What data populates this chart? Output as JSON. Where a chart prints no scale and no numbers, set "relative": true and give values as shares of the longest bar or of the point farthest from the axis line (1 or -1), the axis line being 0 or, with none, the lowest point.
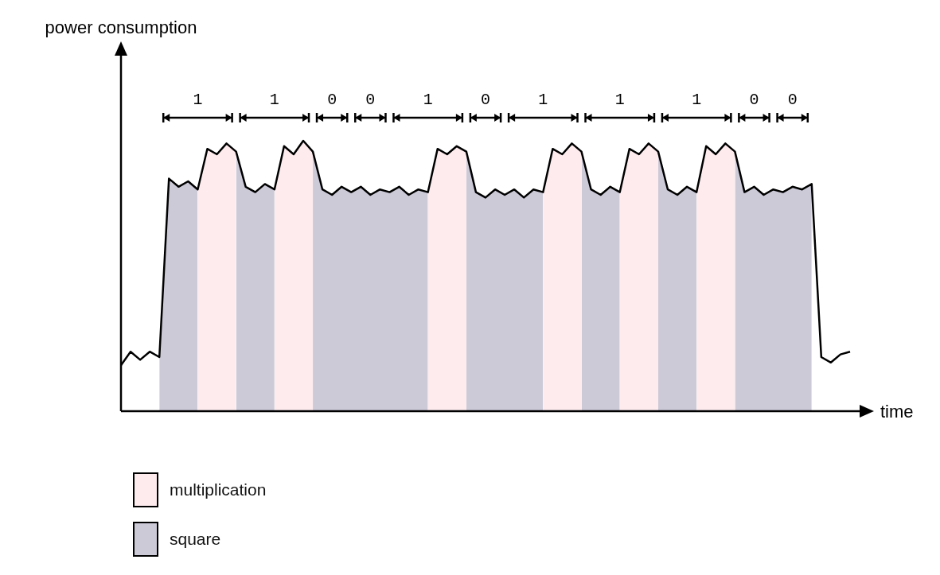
{
  "chart_data": {
    "type": "line",
    "relative": true,
    "xlabel": "time",
    "legend": "bottom left",
    "annotations": [
      "1",
      "1",
      "0",
      "0",
      "1",
      "0",
      "1",
      "1",
      "1",
      "0",
      "0",
      "power consumption"
    ],
    "categories": [
      null,
      null,
      null,
      null,
      null,
      null,
      null,
      null,
      null,
      null,
      null,
      null,
      null,
      null,
      null,
      null,
      null,
      null,
      null,
      null,
      null,
      null,
      null,
      null,
      null,
      null,
      null,
      null,
      null,
      null,
      null,
      null,
      null,
      null,
      null,
      null,
      null,
      null,
      null,
      null,
      null,
      null,
      null,
      null,
      null,
      null,
      null,
      null,
      null,
      null,
      null,
      null,
      null,
      null,
      null,
      null,
      null,
      null,
      null,
      null,
      null,
      null,
      null,
      null,
      null,
      null,
      null,
      null,
      null,
      null,
      null,
      null,
      null,
      null,
      null,
      null,
      null
    ],
    "series": [
      {
        "type": "line",
        "color": "#000000",
        "values": [
          0.17,
          0.22,
          0.19,
          0.22,
          0.2,
          0.86,
          0.83,
          0.85,
          0.82,
          0.97,
          0.95,
          0.99,
          0.96,
          0.83,
          0.81,
          0.84,
          0.82,
          0.98,
          0.95,
          1.0,
          0.96,
          0.82,
          0.8,
          0.83,
          0.81,
          0.83,
          0.8,
          0.82,
          0.81,
          0.83,
          0.8,
          0.82,
          0.81,
          0.97,
          0.95,
          0.98,
          0.96,
          0.81,
          0.79,
          0.82,
          0.8,
          0.82,
          0.79,
          0.82,
          0.81,
          0.97,
          0.95,
          0.99,
          0.96,
          0.82,
          0.8,
          0.83,
          0.81,
          0.97,
          0.95,
          0.99,
          0.96,
          0.82,
          0.8,
          0.83,
          0.81,
          0.98,
          0.95,
          0.99,
          0.96,
          0.81,
          0.83,
          0.8,
          0.82,
          0.81,
          0.83,
          0.82,
          0.84,
          0.2,
          0.18,
          0.21,
          0.22
        ]
      },
      {
        "type": "area",
        "name": "multiplication",
        "color": "#fdebee",
        "values": [
          null,
          null,
          null,
          null,
          null,
          null,
          null,
          null,
          0.82,
          0.97,
          0.95,
          0.99,
          0.96,
          null,
          null,
          null,
          0.82,
          0.98,
          0.95,
          1.0,
          0.96,
          null,
          null,
          null,
          null,
          null,
          null,
          null,
          null,
          null,
          null,
          null,
          0.81,
          0.97,
          0.95,
          0.98,
          0.96,
          null,
          null,
          null,
          null,
          null,
          null,
          null,
          0.81,
          0.97,
          0.95,
          0.99,
          0.96,
          null,
          null,
          null,
          0.81,
          0.97,
          0.95,
          0.99,
          0.96,
          null,
          null,
          null,
          0.81,
          0.98,
          0.95,
          0.99,
          0.96,
          null,
          null,
          null,
          null,
          null,
          null,
          null,
          null,
          null,
          null,
          null,
          null
        ]
      },
      {
        "type": "area",
        "name": "square",
        "color": "#cdcad8",
        "values": [
          null,
          null,
          null,
          null,
          0.2,
          0.86,
          0.83,
          0.85,
          0.82,
          null,
          null,
          null,
          0.96,
          0.83,
          0.81,
          0.84,
          0.82,
          null,
          null,
          null,
          0.96,
          0.82,
          0.8,
          0.83,
          0.81,
          0.83,
          0.8,
          0.82,
          0.81,
          0.83,
          0.8,
          0.82,
          0.81,
          null,
          null,
          null,
          0.96,
          0.81,
          0.79,
          0.82,
          0.8,
          0.82,
          0.79,
          0.82,
          0.81,
          null,
          null,
          null,
          0.96,
          0.82,
          0.8,
          0.83,
          0.81,
          null,
          null,
          null,
          0.96,
          0.82,
          0.8,
          0.83,
          0.81,
          null,
          null,
          null,
          0.96,
          0.81,
          0.83,
          0.8,
          0.82,
          0.81,
          0.83,
          0.82,
          0.84,
          null,
          null,
          null,
          null
        ]
      }
    ]
  }
}
